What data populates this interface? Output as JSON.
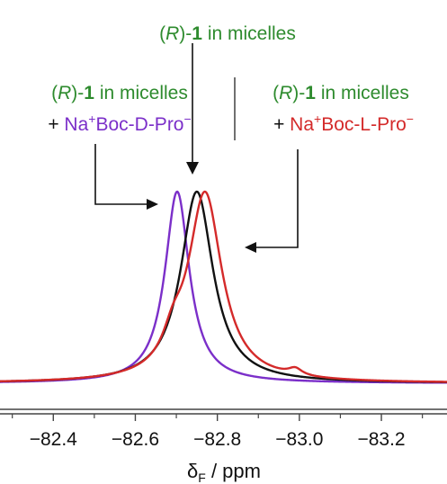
{
  "chart_data": {
    "type": "line",
    "title": "",
    "xlabel": "δF / ppm",
    "xlabel_parts": {
      "symbol": "δ",
      "subscript": "F",
      "suffix": " / ppm"
    },
    "ylabel": "",
    "xlim": [
      -82.27,
      -83.36
    ],
    "x_reversed": true,
    "xticks": [
      -82.4,
      -82.6,
      -82.8,
      -83.0,
      -83.2
    ],
    "xtick_labels": [
      "−82.4",
      "−82.6",
      "−82.8",
      "−83.0",
      "−83.2"
    ],
    "grid": false,
    "colors": {
      "green": "#2e8b2e",
      "purple": "#7b2fc9",
      "red": "#d42a2a",
      "black": "#111111"
    },
    "series": [
      {
        "key": "d",
        "color": "#7b2fc9",
        "peaks": [
          {
            "center": -82.702,
            "height": 1.0,
            "gamma": 0.036
          }
        ]
      },
      {
        "key": "none",
        "color": "#111111",
        "peaks": [
          {
            "center": -82.75,
            "height": 1.0,
            "gamma": 0.048
          }
        ]
      },
      {
        "key": "l",
        "color": "#d42a2a",
        "peaks": [
          {
            "center": -82.77,
            "height": 1.0,
            "gamma": 0.05
          },
          {
            "center": -82.692,
            "height": 0.13,
            "gamma": 0.03
          },
          {
            "center": -82.99,
            "height": 0.035,
            "gamma": 0.02
          }
        ]
      }
    ],
    "annotations": {
      "top": {
        "prefix": "(",
        "italic": "R",
        "mid": ")-",
        "bold": "1",
        "suffix": " in micelles"
      },
      "left": {
        "line1": {
          "prefix": "(",
          "italic": "R",
          "mid": ")-",
          "bold": "1",
          "suffix": " in micelles"
        },
        "line2": {
          "plus": "+ ",
          "salt": "Na",
          "sup": "+",
          "anion": "Boc-D-Pro",
          "anion_sup": "−"
        }
      },
      "right": {
        "line1": {
          "prefix": "(",
          "italic": "R",
          "mid": ")-",
          "bold": "1",
          "suffix": " in micelles"
        },
        "line2": {
          "plus": "+ ",
          "salt": "Na",
          "sup": "+",
          "anion": "Boc-L-Pro",
          "anion_sup": "−"
        }
      }
    }
  }
}
